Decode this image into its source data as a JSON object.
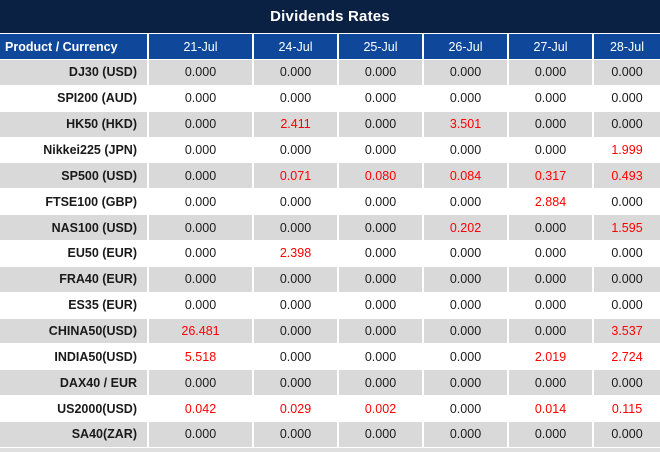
{
  "title": "Dividends Rates",
  "colors": {
    "title_bg": "#0b2143",
    "header_bg": "#0f479b",
    "alt_row_bg": "#d9d9d9",
    "value_text": "#1a1a1a",
    "highlight_text": "#fe0000",
    "bottom_strip": "#dfdfdf"
  },
  "chart_data": {
    "type": "table",
    "title": "Dividends Rates",
    "columns": [
      "Product / Currency",
      "21-Jul",
      "24-Jul",
      "25-Jul",
      "26-Jul",
      "27-Jul",
      "28-Jul"
    ],
    "rows": [
      {
        "label": "DJ30 (USD)",
        "values": [
          "0.000",
          "0.000",
          "0.000",
          "0.000",
          "0.000",
          "0.000"
        ],
        "highlighted": [
          false,
          false,
          false,
          false,
          false,
          false
        ]
      },
      {
        "label": "SPI200 (AUD)",
        "values": [
          "0.000",
          "0.000",
          "0.000",
          "0.000",
          "0.000",
          "0.000"
        ],
        "highlighted": [
          false,
          false,
          false,
          false,
          false,
          false
        ]
      },
      {
        "label": "HK50 (HKD)",
        "values": [
          "0.000",
          "2.411",
          "0.000",
          "3.501",
          "0.000",
          "0.000"
        ],
        "highlighted": [
          false,
          true,
          false,
          true,
          false,
          false
        ]
      },
      {
        "label": "Nikkei225 (JPN)",
        "values": [
          "0.000",
          "0.000",
          "0.000",
          "0.000",
          "0.000",
          "1.999"
        ],
        "highlighted": [
          false,
          false,
          false,
          false,
          false,
          true
        ]
      },
      {
        "label": "SP500 (USD)",
        "values": [
          "0.000",
          "0.071",
          "0.080",
          "0.084",
          "0.317",
          "0.493"
        ],
        "highlighted": [
          false,
          true,
          true,
          true,
          true,
          true
        ]
      },
      {
        "label": "FTSE100 (GBP)",
        "values": [
          "0.000",
          "0.000",
          "0.000",
          "0.000",
          "2.884",
          "0.000"
        ],
        "highlighted": [
          false,
          false,
          false,
          false,
          true,
          false
        ]
      },
      {
        "label": "NAS100 (USD)",
        "values": [
          "0.000",
          "0.000",
          "0.000",
          "0.202",
          "0.000",
          "1.595"
        ],
        "highlighted": [
          false,
          false,
          false,
          true,
          false,
          true
        ]
      },
      {
        "label": "EU50 (EUR)",
        "values": [
          "0.000",
          "2.398",
          "0.000",
          "0.000",
          "0.000",
          "0.000"
        ],
        "highlighted": [
          false,
          true,
          false,
          false,
          false,
          false
        ]
      },
      {
        "label": "FRA40 (EUR)",
        "values": [
          "0.000",
          "0.000",
          "0.000",
          "0.000",
          "0.000",
          "0.000"
        ],
        "highlighted": [
          false,
          false,
          false,
          false,
          false,
          false
        ]
      },
      {
        "label": "ES35 (EUR)",
        "values": [
          "0.000",
          "0.000",
          "0.000",
          "0.000",
          "0.000",
          "0.000"
        ],
        "highlighted": [
          false,
          false,
          false,
          false,
          false,
          false
        ]
      },
      {
        "label": "CHINA50(USD)",
        "values": [
          "26.481",
          "0.000",
          "0.000",
          "0.000",
          "0.000",
          "3.537"
        ],
        "highlighted": [
          true,
          false,
          false,
          false,
          false,
          true
        ]
      },
      {
        "label": "INDIA50(USD)",
        "values": [
          "5.518",
          "0.000",
          "0.000",
          "0.000",
          "2.019",
          "2.724"
        ],
        "highlighted": [
          true,
          false,
          false,
          false,
          true,
          true
        ]
      },
      {
        "label": "DAX40 / EUR",
        "values": [
          "0.000",
          "0.000",
          "0.000",
          "0.000",
          "0.000",
          "0.000"
        ],
        "highlighted": [
          false,
          false,
          false,
          false,
          false,
          false
        ]
      },
      {
        "label": "US2000(USD)",
        "values": [
          "0.042",
          "0.029",
          "0.002",
          "0.000",
          "0.014",
          "0.115"
        ],
        "highlighted": [
          true,
          true,
          true,
          false,
          true,
          true
        ]
      },
      {
        "label": "SA40(ZAR)",
        "values": [
          "0.000",
          "0.000",
          "0.000",
          "0.000",
          "0.000",
          "0.000"
        ],
        "highlighted": [
          false,
          false,
          false,
          false,
          false,
          false
        ]
      }
    ]
  }
}
